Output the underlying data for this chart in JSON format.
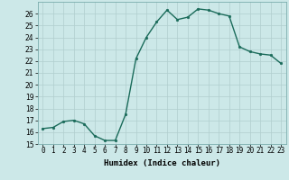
{
  "x": [
    0,
    1,
    2,
    3,
    4,
    5,
    6,
    7,
    8,
    9,
    10,
    11,
    12,
    13,
    14,
    15,
    16,
    17,
    18,
    19,
    20,
    21,
    22,
    23
  ],
  "y": [
    16.3,
    16.4,
    16.9,
    17.0,
    16.7,
    15.7,
    15.3,
    15.3,
    17.5,
    22.2,
    24.0,
    25.3,
    26.3,
    25.5,
    25.7,
    26.4,
    26.3,
    26.0,
    25.8,
    23.2,
    22.8,
    22.6,
    22.5,
    21.8
  ],
  "line_color": "#1a6b5a",
  "marker_color": "#1a6b5a",
  "bg_color": "#cce8e8",
  "grid_color_major": "#b0cece",
  "grid_color_minor": "#b0cece",
  "xlabel": "Humidex (Indice chaleur)",
  "ylim": [
    15,
    27
  ],
  "xlim": [
    -0.5,
    23.5
  ],
  "yticks": [
    15,
    16,
    17,
    18,
    19,
    20,
    21,
    22,
    23,
    24,
    25,
    26
  ],
  "xticks": [
    0,
    1,
    2,
    3,
    4,
    5,
    6,
    7,
    8,
    9,
    10,
    11,
    12,
    13,
    14,
    15,
    16,
    17,
    18,
    19,
    20,
    21,
    22,
    23
  ],
  "xtick_labels": [
    "0",
    "1",
    "2",
    "3",
    "4",
    "5",
    "6",
    "7",
    "8",
    "9",
    "10",
    "11",
    "12",
    "13",
    "14",
    "15",
    "16",
    "17",
    "18",
    "19",
    "20",
    "21",
    "22",
    "23"
  ],
  "axis_fontsize": 6.5,
  "tick_fontsize": 5.5,
  "linewidth": 1.0,
  "markersize": 2.0
}
